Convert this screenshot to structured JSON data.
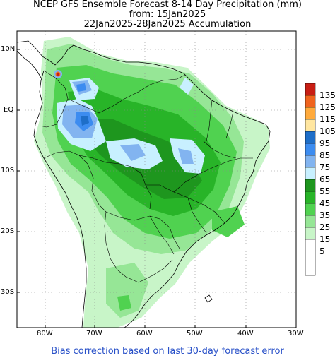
{
  "title": {
    "line1": "NCEP GFS Ensemble Forecast 8-14 Day Precipitation (mm)",
    "line2": "from: 15Jan2025",
    "line3": "22Jan2025-28Jan2025 Accumulation"
  },
  "footer": "Bias correction based on last 30-day forecast error",
  "axes": {
    "lat_labels": [
      "10N",
      "EQ",
      "10S",
      "20S",
      "30S"
    ],
    "lon_labels": [
      "80W",
      "70W",
      "60W",
      "50W",
      "40W",
      "30W"
    ]
  },
  "legend": {
    "levels": [
      {
        "label": "135",
        "color": "#c81e14"
      },
      {
        "label": "125",
        "color": "#f0641e"
      },
      {
        "label": "115",
        "color": "#ffaa3c"
      },
      {
        "label": "105",
        "color": "#ffe6a0"
      },
      {
        "label": "95",
        "color": "#1e6ec8"
      },
      {
        "label": "85",
        "color": "#3c8cf0"
      },
      {
        "label": "75",
        "color": "#82b4f0"
      },
      {
        "label": "65",
        "color": "#c8f0ff"
      },
      {
        "label": "55",
        "color": "#1e961e"
      },
      {
        "label": "45",
        "color": "#28b428"
      },
      {
        "label": "35",
        "color": "#50d250"
      },
      {
        "label": "25",
        "color": "#96e696"
      },
      {
        "label": "15",
        "color": "#c8f5c8"
      },
      {
        "label": "5",
        "color": "#ffffff"
      }
    ]
  }
}
